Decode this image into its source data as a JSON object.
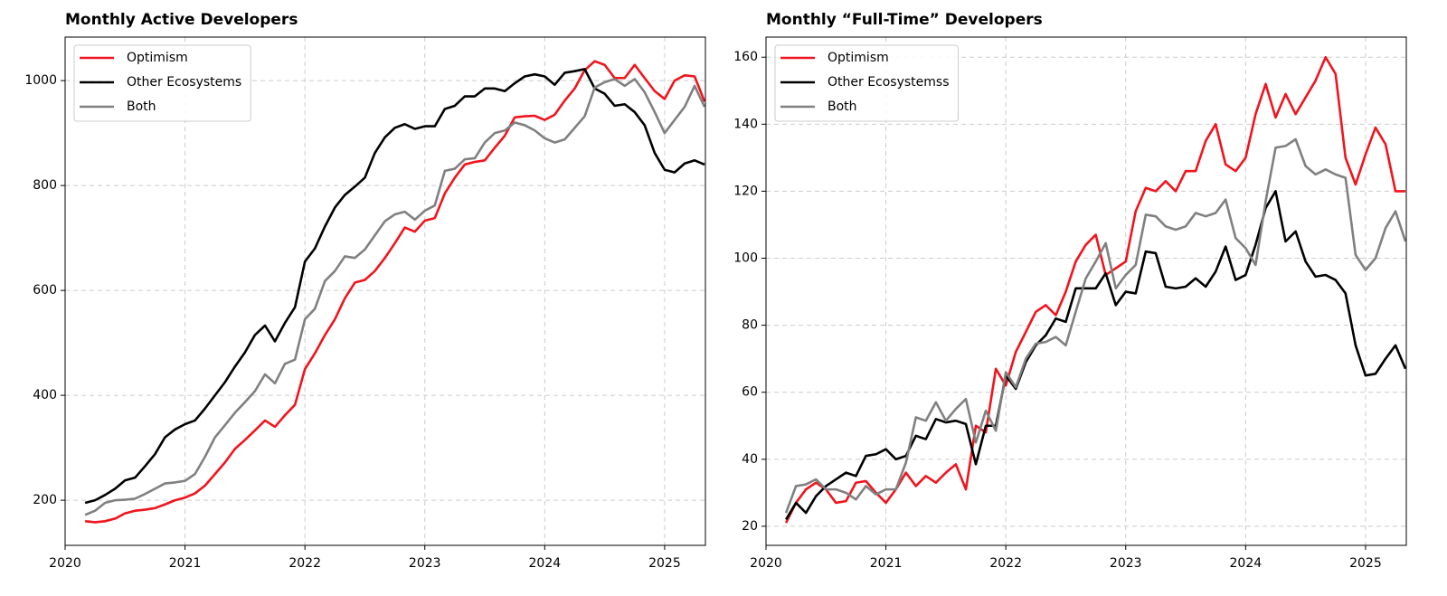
{
  "chart_data": [
    {
      "type": "line",
      "title": "Monthly Active Developers",
      "x": [
        2020.167,
        2020.25,
        2020.333,
        2020.417,
        2020.5,
        2020.583,
        2020.667,
        2020.75,
        2020.833,
        2020.917,
        2021,
        2021.083,
        2021.167,
        2021.25,
        2021.333,
        2021.417,
        2021.5,
        2021.583,
        2021.667,
        2021.75,
        2021.833,
        2021.917,
        2022,
        2022.083,
        2022.167,
        2022.25,
        2022.333,
        2022.417,
        2022.5,
        2022.583,
        2022.667,
        2022.75,
        2022.833,
        2022.917,
        2023,
        2023.083,
        2023.167,
        2023.25,
        2023.333,
        2023.417,
        2023.5,
        2023.583,
        2023.667,
        2023.75,
        2023.833,
        2023.917,
        2024,
        2024.083,
        2024.167,
        2024.25,
        2024.333,
        2024.417,
        2024.5,
        2024.583,
        2024.667,
        2024.75,
        2024.833,
        2024.917,
        2025,
        2025.083,
        2025.167,
        2025.25,
        2025.333
      ],
      "xlim": [
        2020,
        2025.34
      ],
      "xticks": [
        2020,
        2021,
        2022,
        2023,
        2024,
        2025
      ],
      "ylim": [
        114,
        1083
      ],
      "yticks": [
        200,
        400,
        600,
        800,
        1000
      ],
      "grid": true,
      "legend": "upper left",
      "series": [
        {
          "name": "Optimism",
          "color": "#f0141e",
          "values": [
            160,
            158,
            160,
            165,
            175,
            180,
            182,
            185,
            192,
            200,
            205,
            213,
            228,
            250,
            272,
            298,
            315,
            333,
            352,
            340,
            362,
            382,
            450,
            480,
            515,
            545,
            585,
            615,
            620,
            637,
            662,
            690,
            720,
            712,
            733,
            738,
            785,
            815,
            840,
            845,
            848,
            872,
            895,
            930,
            932,
            933,
            925,
            935,
            962,
            985,
            1020,
            1037,
            1030,
            1005,
            1005,
            1030,
            1005,
            980,
            965,
            1000,
            1010,
            1008,
            960
          ]
        },
        {
          "name": "Other Ecosystems",
          "color": "#000000",
          "values": [
            195,
            200,
            210,
            222,
            238,
            243,
            265,
            288,
            320,
            335,
            345,
            352,
            375,
            400,
            425,
            455,
            482,
            515,
            533,
            503,
            538,
            568,
            655,
            680,
            722,
            758,
            782,
            798,
            815,
            862,
            892,
            910,
            917,
            908,
            913,
            913,
            946,
            952,
            970,
            970,
            985,
            985,
            980,
            995,
            1008,
            1012,
            1008,
            992,
            1015,
            1018,
            1022,
            985,
            975,
            952,
            955,
            940,
            915,
            862,
            830,
            825,
            842,
            848,
            840
          ]
        },
        {
          "name": "Both",
          "color": "#808080",
          "values": [
            172,
            180,
            195,
            200,
            201,
            203,
            212,
            222,
            232,
            234,
            237,
            250,
            283,
            320,
            343,
            367,
            387,
            408,
            440,
            423,
            460,
            468,
            545,
            565,
            618,
            637,
            665,
            662,
            678,
            705,
            732,
            745,
            750,
            735,
            752,
            762,
            828,
            832,
            850,
            852,
            882,
            900,
            905,
            920,
            915,
            905,
            890,
            882,
            888,
            910,
            932,
            987,
            997,
            1003,
            990,
            1003,
            978,
            940,
            900,
            925,
            950,
            990,
            950
          ]
        }
      ]
    },
    {
      "type": "line",
      "title": "Monthly “Full-Time” Developers",
      "x": [
        2020.167,
        2020.25,
        2020.333,
        2020.417,
        2020.5,
        2020.583,
        2020.667,
        2020.75,
        2020.833,
        2020.917,
        2021,
        2021.083,
        2021.167,
        2021.25,
        2021.333,
        2021.417,
        2021.5,
        2021.583,
        2021.667,
        2021.75,
        2021.833,
        2021.917,
        2022,
        2022.083,
        2022.167,
        2022.25,
        2022.333,
        2022.417,
        2022.5,
        2022.583,
        2022.667,
        2022.75,
        2022.833,
        2022.917,
        2023,
        2023.083,
        2023.167,
        2023.25,
        2023.333,
        2023.417,
        2023.5,
        2023.583,
        2023.667,
        2023.75,
        2023.833,
        2023.917,
        2024,
        2024.083,
        2024.167,
        2024.25,
        2024.333,
        2024.417,
        2024.5,
        2024.583,
        2024.667,
        2024.75,
        2024.833,
        2024.917,
        2025,
        2025.083,
        2025.167,
        2025.25,
        2025.333
      ],
      "xlim": [
        2020,
        2025.34
      ],
      "xticks": [
        2020,
        2021,
        2022,
        2023,
        2024,
        2025
      ],
      "ylim": [
        14.3,
        166
      ],
      "yticks": [
        20,
        40,
        60,
        80,
        100,
        120,
        140,
        160
      ],
      "grid": true,
      "legend": "upper left",
      "series": [
        {
          "name": "Optimism",
          "color": "#f0141e",
          "values": [
            21,
            27,
            31,
            33,
            31,
            27,
            27.5,
            33,
            33.5,
            30,
            27,
            31,
            36,
            32,
            35,
            33,
            36,
            38.5,
            31,
            50,
            48,
            67,
            62,
            72,
            78,
            84,
            86,
            83,
            90,
            99,
            104,
            107,
            95,
            97,
            99,
            114,
            121,
            120,
            123,
            120,
            126,
            126,
            135,
            140,
            128,
            126,
            130,
            143,
            152,
            142,
            149,
            143,
            148,
            153,
            160,
            155,
            130,
            122,
            131,
            139,
            134,
            120,
            120
          ]
        },
        {
          "name": "Other Ecosystemss",
          "color": "#000000",
          "values": [
            22,
            27,
            24,
            29,
            32,
            34,
            36,
            35,
            41,
            41.5,
            43,
            40,
            41,
            47,
            46,
            52,
            51,
            51.5,
            50.5,
            38.5,
            50,
            50,
            65,
            61,
            69,
            74,
            77,
            82,
            81,
            91,
            91,
            91,
            95.5,
            86,
            90,
            89.5,
            102,
            101.5,
            91.5,
            91,
            91.5,
            94,
            91.5,
            96,
            103.5,
            93.5,
            95,
            104,
            115,
            120,
            105,
            108,
            99,
            94.5,
            95,
            93.5,
            89.5,
            74,
            65,
            65.5,
            70,
            74,
            67
          ]
        },
        {
          "name": "Both",
          "color": "#808080",
          "values": [
            24,
            32,
            32.5,
            34,
            31,
            31,
            30,
            28,
            32,
            29.5,
            31,
            31,
            39,
            52.5,
            51.5,
            57,
            51.5,
            55,
            58,
            45,
            54.5,
            48.5,
            66,
            61.5,
            70,
            74.5,
            75,
            76.5,
            74,
            84,
            94,
            99,
            104.5,
            91,
            95,
            98,
            113,
            112.5,
            109.5,
            108.5,
            109.5,
            113.5,
            112.5,
            113.5,
            117.5,
            106,
            103,
            98,
            117,
            133,
            133.5,
            135.5,
            127.5,
            125,
            126.5,
            125,
            124,
            101,
            96.5,
            100,
            109,
            114,
            105
          ]
        }
      ]
    }
  ]
}
